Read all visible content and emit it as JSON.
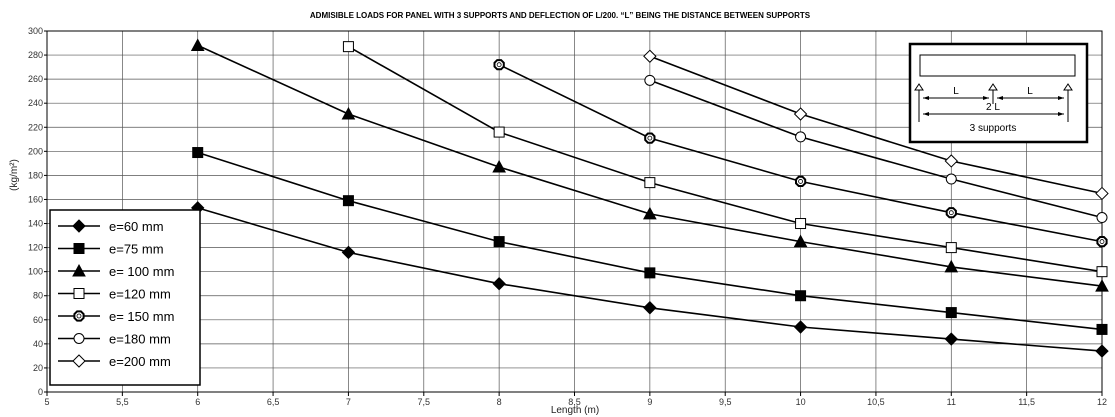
{
  "chart_data": {
    "type": "line",
    "title": "ADMISIBLE LOADS FOR PANEL WITH 3 SUPPORTS AND DEFLECTION OF L/200. “L” BEING THE DISTANCE BETWEEN SUPPORTS",
    "xlabel": "Length (m)",
    "ylabel": "(kg/m²)",
    "xlim": [
      5,
      12
    ],
    "ylim": [
      0,
      300
    ],
    "x_ticks": [
      "5",
      "5,5",
      "6",
      "6,5",
      "7",
      "7,5",
      "8",
      "8,5",
      "9",
      "9,5",
      "10",
      "10,5",
      "11",
      "11,5",
      "12"
    ],
    "y_ticks": [
      "0",
      "20",
      "40",
      "60",
      "80",
      "100",
      "120",
      "140",
      "160",
      "180",
      "200",
      "220",
      "240",
      "260",
      "280",
      "300"
    ],
    "grid": true,
    "legend_position": "bottom-left",
    "series": [
      {
        "name": "e=60 mm",
        "marker": "diamond-filled",
        "x": [
          6,
          7,
          8,
          9,
          10,
          11,
          12
        ],
        "y": [
          153,
          116,
          90,
          70,
          54,
          44,
          34
        ]
      },
      {
        "name": "e=75 mm",
        "marker": "square-filled",
        "x": [
          6,
          7,
          8,
          9,
          10,
          11,
          12
        ],
        "y": [
          199,
          159,
          125,
          99,
          80,
          66,
          52
        ]
      },
      {
        "name": "e= 100 mm",
        "marker": "triangle-filled",
        "x": [
          6,
          7,
          8,
          9,
          10,
          11,
          12
        ],
        "y": [
          288,
          231,
          187,
          148,
          125,
          104,
          88
        ]
      },
      {
        "name": "e=120 mm",
        "marker": "square-open",
        "x": [
          7,
          8,
          9,
          10,
          11,
          12
        ],
        "y": [
          287,
          216,
          174,
          140,
          120,
          100
        ]
      },
      {
        "name": "e= 150 mm",
        "marker": "hexagon-open",
        "x": [
          8,
          9,
          10,
          11,
          12
        ],
        "y": [
          272,
          211,
          175,
          149,
          125
        ]
      },
      {
        "name": "e=180 mm",
        "marker": "circle-open",
        "x": [
          9,
          10,
          11,
          12
        ],
        "y": [
          259,
          212,
          177,
          145
        ]
      },
      {
        "name": "e=200 mm",
        "marker": "diamond-open",
        "x": [
          9,
          10,
          11,
          12
        ],
        "y": [
          279,
          231,
          192,
          165
        ]
      }
    ],
    "inset": {
      "span_label_left": "L",
      "span_label_right": "L",
      "total_label": "2 L",
      "supports_label": "3 supports"
    }
  }
}
